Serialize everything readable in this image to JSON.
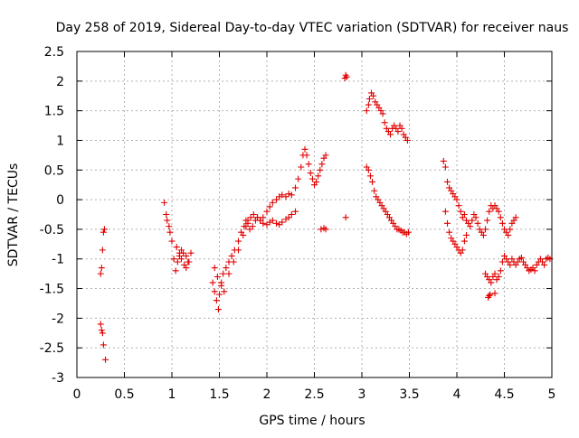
{
  "chart_data": {
    "type": "scatter",
    "title": "Day 258 of 2019, Sidereal Day-to-day VTEC variation (SDTVAR) for receiver naus",
    "xlabel": "GPS time / hours",
    "ylabel": "SDTVAR / TECUs",
    "xlim": [
      0,
      5
    ],
    "ylim": [
      -3,
      2.5
    ],
    "x_ticks": [
      0,
      0.5,
      1,
      1.5,
      2,
      2.5,
      3,
      3.5,
      4,
      4.5,
      5
    ],
    "x_tick_labels": [
      "0",
      "0.5",
      "1",
      "1.5",
      "2",
      "2.5",
      "3",
      "3.5",
      "4",
      "4.5",
      "5"
    ],
    "y_ticks": [
      -3,
      -2.5,
      -2,
      -1.5,
      -1,
      -0.5,
      0,
      0.5,
      1,
      1.5,
      2,
      2.5
    ],
    "y_tick_labels": [
      "-3",
      "-2.5",
      "-2",
      "-1.5",
      "-1",
      "-0.5",
      "0",
      "0.5",
      "1",
      "1.5",
      "2",
      "2.5"
    ],
    "grid": true,
    "marker": "plus",
    "color": "#e00000",
    "series": [
      {
        "name": "s1",
        "x": [
          0.25,
          0.26,
          0.27,
          0.28,
          0.29
        ],
        "y": [
          -1.25,
          -1.15,
          -0.85,
          -0.55,
          -0.5
        ]
      },
      {
        "name": "s2",
        "x": [
          0.25,
          0.26,
          0.27,
          0.28,
          0.3
        ],
        "y": [
          -2.1,
          -2.2,
          -2.25,
          -2.45,
          -2.7
        ]
      },
      {
        "name": "s3",
        "x": [
          0.92,
          0.94,
          0.95,
          0.97,
          0.98,
          1.0,
          1.02,
          1.04,
          1.06,
          1.08,
          1.1,
          1.12,
          1.15,
          1.18
        ],
        "y": [
          -0.05,
          -0.25,
          -0.35,
          -0.45,
          -0.55,
          -0.7,
          -1.0,
          -1.2,
          -1.05,
          -0.95,
          -0.85,
          -0.9,
          -0.95,
          -1.05
        ]
      },
      {
        "name": "s4",
        "x": [
          1.05,
          1.08,
          1.1,
          1.13,
          1.15,
          1.17,
          1.2
        ],
        "y": [
          -0.8,
          -0.9,
          -1.0,
          -1.1,
          -1.15,
          -1.05,
          -0.9
        ]
      },
      {
        "name": "s5",
        "x": [
          1.43,
          1.45,
          1.47,
          1.49,
          1.5,
          1.52,
          1.54,
          1.57,
          1.6,
          1.63,
          1.66,
          1.7,
          1.73,
          1.76,
          1.78,
          1.8,
          1.82,
          1.85,
          1.88,
          1.9,
          1.93,
          1.96,
          2.0,
          2.03,
          2.06,
          2.1,
          2.13,
          2.16,
          2.2,
          2.23,
          2.26,
          2.3
        ],
        "y": [
          -1.4,
          -1.55,
          -1.7,
          -1.85,
          -1.6,
          -1.4,
          -1.25,
          -1.15,
          -1.05,
          -0.95,
          -0.85,
          -0.7,
          -0.55,
          -0.45,
          -0.35,
          -0.4,
          -0.5,
          -0.45,
          -0.35,
          -0.3,
          -0.35,
          -0.4,
          -0.42,
          -0.38,
          -0.35,
          -0.4,
          -0.42,
          -0.38,
          -0.33,
          -0.3,
          -0.25,
          -0.2
        ]
      },
      {
        "name": "s6",
        "x": [
          1.45,
          1.48,
          1.52,
          1.55,
          1.6,
          1.65,
          1.7,
          1.75,
          1.78,
          1.8,
          1.83,
          1.86,
          1.9,
          1.93,
          1.96,
          2.0,
          2.03,
          2.06,
          2.1,
          2.13,
          2.16,
          2.2,
          2.23,
          2.26,
          2.3,
          2.33,
          2.36,
          2.38,
          2.4,
          2.42,
          2.44,
          2.46,
          2.48,
          2.5,
          2.52,
          2.54,
          2.56,
          2.58,
          2.6,
          2.62
        ],
        "y": [
          -1.15,
          -1.3,
          -1.45,
          -1.55,
          -1.25,
          -1.05,
          -0.85,
          -0.6,
          -0.45,
          -0.35,
          -0.3,
          -0.25,
          -0.3,
          -0.35,
          -0.3,
          -0.2,
          -0.12,
          -0.05,
          0.0,
          0.05,
          0.08,
          0.05,
          0.1,
          0.08,
          0.2,
          0.35,
          0.55,
          0.75,
          0.85,
          0.75,
          0.6,
          0.45,
          0.35,
          0.25,
          0.3,
          0.4,
          0.5,
          0.6,
          0.7,
          0.75
        ]
      },
      {
        "name": "s7",
        "x": [
          2.57,
          2.6,
          2.62
        ],
        "y": [
          -0.5,
          -0.48,
          -0.5
        ]
      },
      {
        "name": "s8",
        "x": [
          2.82,
          2.83,
          2.84
        ],
        "y": [
          2.05,
          2.1,
          2.07
        ]
      },
      {
        "name": "s9",
        "x": [
          2.83
        ],
        "y": [
          -0.3
        ]
      },
      {
        "name": "s10",
        "x": [
          3.05,
          3.07,
          3.08,
          3.1,
          3.12,
          3.14,
          3.16,
          3.18,
          3.2,
          3.22,
          3.24,
          3.26,
          3.28,
          3.3,
          3.32,
          3.34,
          3.36,
          3.38,
          3.4,
          3.42,
          3.44,
          3.46,
          3.48
        ],
        "y": [
          1.5,
          1.6,
          1.7,
          1.8,
          1.75,
          1.65,
          1.6,
          1.55,
          1.5,
          1.45,
          1.3,
          1.2,
          1.15,
          1.1,
          1.2,
          1.25,
          1.2,
          1.15,
          1.25,
          1.2,
          1.1,
          1.05,
          1.0
        ]
      },
      {
        "name": "s11",
        "x": [
          3.05,
          3.07,
          3.09,
          3.11,
          3.13,
          3.15,
          3.17,
          3.19,
          3.21,
          3.23,
          3.25,
          3.27,
          3.29,
          3.31,
          3.33,
          3.35,
          3.37,
          3.39,
          3.41,
          3.43,
          3.45,
          3.47,
          3.49
        ],
        "y": [
          0.55,
          0.5,
          0.4,
          0.3,
          0.15,
          0.05,
          0.0,
          -0.05,
          -0.1,
          -0.15,
          -0.2,
          -0.25,
          -0.3,
          -0.35,
          -0.4,
          -0.45,
          -0.5,
          -0.5,
          -0.52,
          -0.55,
          -0.55,
          -0.58,
          -0.55
        ]
      },
      {
        "name": "s12",
        "x": [
          3.86,
          3.88,
          3.9,
          3.92,
          3.94,
          3.96,
          3.98,
          4.0,
          4.02,
          4.04,
          4.06,
          4.08,
          4.1,
          4.12,
          4.14,
          4.16,
          4.18,
          4.2,
          4.22,
          4.24,
          4.26,
          4.28,
          4.3,
          4.32,
          4.34,
          4.36,
          4.38,
          4.4,
          4.42,
          4.44,
          4.46,
          4.48,
          4.5,
          4.52,
          4.54,
          4.56,
          4.58,
          4.6,
          4.62
        ],
        "y": [
          0.65,
          0.55,
          0.3,
          0.2,
          0.15,
          0.1,
          0.05,
          0.0,
          -0.1,
          -0.2,
          -0.3,
          -0.25,
          -0.35,
          -0.4,
          -0.45,
          -0.35,
          -0.25,
          -0.3,
          -0.4,
          -0.5,
          -0.55,
          -0.6,
          -0.5,
          -0.35,
          -0.2,
          -0.1,
          -0.15,
          -0.1,
          -0.15,
          -0.2,
          -0.3,
          -0.4,
          -0.5,
          -0.55,
          -0.6,
          -0.5,
          -0.4,
          -0.35,
          -0.3
        ]
      },
      {
        "name": "s13",
        "x": [
          3.88,
          3.9,
          3.92,
          3.94,
          3.96,
          3.98,
          4.0,
          4.02,
          4.04,
          4.06,
          4.08,
          4.1
        ],
        "y": [
          -0.2,
          -0.4,
          -0.55,
          -0.65,
          -0.7,
          -0.75,
          -0.8,
          -0.85,
          -0.9,
          -0.85,
          -0.7,
          -0.6
        ]
      },
      {
        "name": "s14",
        "x": [
          4.3,
          4.32,
          4.34,
          4.36,
          4.38,
          4.4,
          4.42,
          4.44,
          4.46,
          4.48,
          4.5,
          4.52,
          4.54,
          4.56,
          4.58,
          4.6,
          4.62,
          4.64,
          4.66,
          4.68,
          4.7,
          4.72,
          4.74,
          4.76,
          4.78,
          4.8,
          4.82,
          4.84,
          4.86,
          4.88,
          4.9,
          4.92,
          4.94,
          4.96,
          4.98
        ],
        "y": [
          -1.25,
          -1.3,
          -1.35,
          -1.4,
          -1.3,
          -1.25,
          -1.35,
          -1.3,
          -1.2,
          -1.05,
          -0.95,
          -1.0,
          -1.05,
          -1.1,
          -1.0,
          -1.05,
          -1.1,
          -1.05,
          -1.0,
          -0.98,
          -1.05,
          -1.1,
          -1.15,
          -1.2,
          -1.18,
          -1.15,
          -1.2,
          -1.1,
          -1.05,
          -1.0,
          -1.05,
          -1.1,
          -1.0,
          -0.98,
          -1.0
        ]
      },
      {
        "name": "s15",
        "x": [
          4.33,
          4.34,
          4.35,
          4.4
        ],
        "y": [
          -1.65,
          -1.62,
          -1.6,
          -1.58
        ]
      }
    ]
  }
}
